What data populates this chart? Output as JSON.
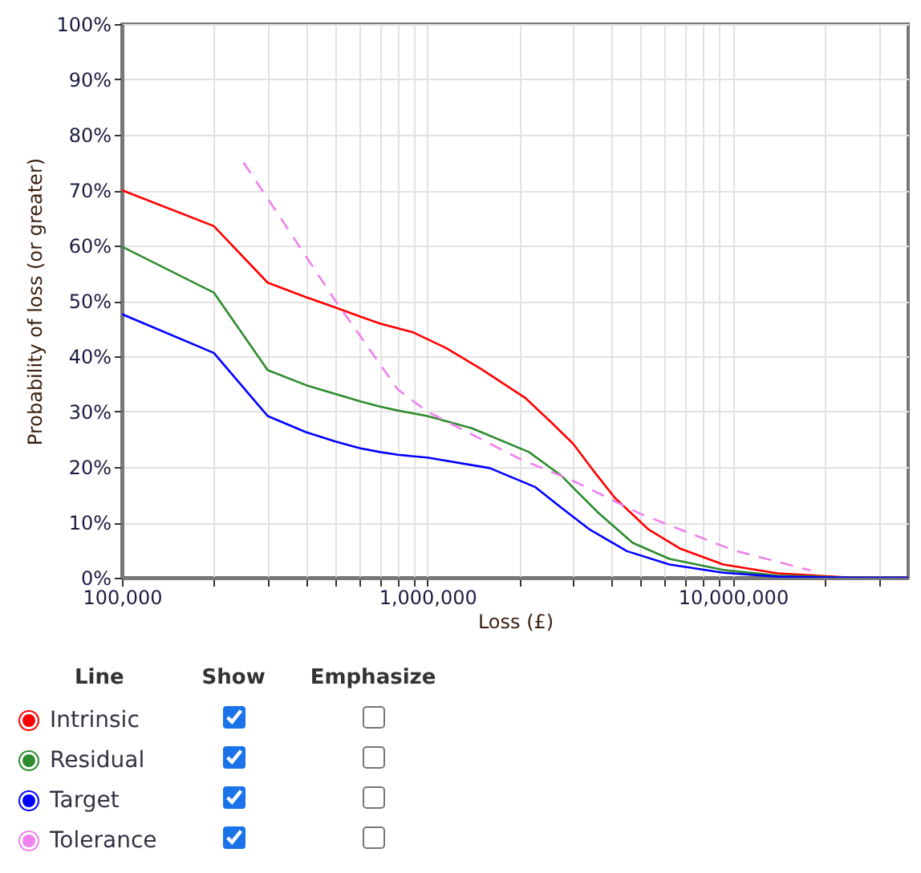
{
  "chart_data": {
    "type": "line",
    "xlabel": "Loss (£)",
    "ylabel": "Probability of loss (or greater)",
    "log": "x",
    "grid": true,
    "legend": "bottom left",
    "legend_title": "Line",
    "marker": "none",
    "annotations": [
      "Show",
      "Emphasize"
    ],
    "xlim": [
      100000,
      37500000
    ],
    "xticks": [
      {
        "value": 100000,
        "label": "100,000"
      },
      {
        "value": 200000,
        "label": null
      },
      {
        "value": 300000,
        "label": null
      },
      {
        "value": 400000,
        "label": null
      },
      {
        "value": 500000,
        "label": null
      },
      {
        "value": 600000,
        "label": null
      },
      {
        "value": 700000,
        "label": null
      },
      {
        "value": 800000,
        "label": null
      },
      {
        "value": 900000,
        "label": null
      },
      {
        "value": 1000000,
        "label": "1,000,000"
      },
      {
        "value": 2000000,
        "label": null
      },
      {
        "value": 3000000,
        "label": null
      },
      {
        "value": 4000000,
        "label": null
      },
      {
        "value": 5000000,
        "label": null
      },
      {
        "value": 6000000,
        "label": null
      },
      {
        "value": 7000000,
        "label": null
      },
      {
        "value": 8000000,
        "label": null
      },
      {
        "value": 9000000,
        "label": null
      },
      {
        "value": 10000000,
        "label": "10,000,000"
      },
      {
        "value": 20000000,
        "label": null
      },
      {
        "value": 30000000,
        "label": null
      }
    ],
    "ylim": [
      0,
      100
    ],
    "yticks": [
      {
        "value": 0,
        "label": "0%"
      },
      {
        "value": 10,
        "label": "10%"
      },
      {
        "value": 20,
        "label": "20%"
      },
      {
        "value": 30,
        "label": "30%"
      },
      {
        "value": 40,
        "label": "40%"
      },
      {
        "value": 50,
        "label": "50%"
      },
      {
        "value": 60,
        "label": "60%"
      },
      {
        "value": 70,
        "label": "70%"
      },
      {
        "value": 80,
        "label": "80%"
      },
      {
        "value": 90,
        "label": "90%"
      },
      {
        "value": 100,
        "label": "100%"
      }
    ],
    "series": [
      {
        "name": "Intrinsic",
        "color": "#ff0000",
        "x": [
          100000,
          200000,
          300000,
          400000,
          500000,
          600000,
          700000,
          900000,
          1150000,
          1500000,
          2100000,
          2550000,
          3000000,
          3500000,
          4100000,
          5300000,
          6700000,
          9300000,
          14000000,
          25000000,
          37500000
        ],
        "values": [
          70,
          63.5,
          53.3,
          50.7,
          48.8,
          47.2,
          45.9,
          44.3,
          41.5,
          37.7,
          32.4,
          28,
          24.2,
          19.3,
          14.5,
          8.7,
          5.3,
          2.4,
          0.8,
          0,
          0
        ]
      },
      {
        "name": "Residual",
        "color": "#2e8b2e",
        "x": [
          100000,
          200000,
          300000,
          400000,
          500000,
          600000,
          700000,
          800000,
          1000000,
          1400000,
          2150000,
          2750000,
          3100000,
          3650000,
          4700000,
          6200000,
          9300000,
          14000000,
          25000000,
          37500000
        ],
        "values": [
          59.8,
          51.5,
          37.5,
          34.8,
          33.2,
          31.9,
          30.9,
          30.2,
          29.2,
          27,
          22.7,
          18.4,
          15.5,
          11.6,
          6.3,
          3.4,
          1.4,
          0.4,
          0,
          0
        ]
      },
      {
        "name": "Target",
        "color": "#0000ff",
        "x": [
          100000,
          200000,
          300000,
          400000,
          500000,
          600000,
          700000,
          800000,
          1000000,
          1600000,
          2250000,
          2750000,
          3400000,
          4500000,
          6200000,
          9300000,
          14000000,
          25000000,
          37500000
        ],
        "values": [
          47.6,
          40.6,
          29.2,
          26.3,
          24.6,
          23.4,
          22.7,
          22.2,
          21.7,
          19.8,
          16.4,
          12.6,
          8.7,
          4.8,
          2.4,
          0.9,
          0.2,
          0,
          0
        ]
      },
      {
        "name": "Tolerance",
        "color": "#ee82ee",
        "line_style": "dashed",
        "x": [
          250000,
          300000,
          500000,
          800000,
          1000000,
          2000000,
          3000000,
          5000000,
          10000000,
          18000000
        ],
        "values": [
          75,
          68.5,
          50,
          34,
          30,
          21.5,
          17.5,
          11.5,
          5,
          1.3
        ]
      }
    ]
  }
}
